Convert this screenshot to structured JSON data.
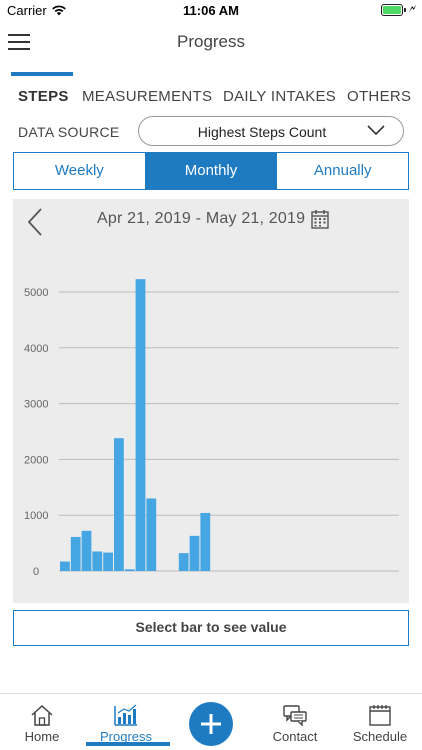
{
  "status": {
    "carrier": "Carrier",
    "time": "11:06 AM"
  },
  "header": {
    "title": "Progress"
  },
  "tabs": [
    {
      "label": "STEPS",
      "active": true
    },
    {
      "label": "MEASUREMENTS",
      "active": false
    },
    {
      "label": "DAILY INTAKES",
      "active": false
    },
    {
      "label": "OTHERS",
      "active": false
    }
  ],
  "data_source": {
    "label": "DATA SOURCE",
    "value": "Highest Steps Count"
  },
  "periods": [
    {
      "label": "Weekly",
      "active": false
    },
    {
      "label": "Monthly",
      "active": true
    },
    {
      "label": "Annually",
      "active": false
    }
  ],
  "chart": {
    "date_range": "Apr 21, 2019 - May 21, 2019"
  },
  "chart_data": {
    "type": "bar",
    "ylim": [
      0,
      5000
    ],
    "yticks": [
      0,
      1000,
      2000,
      3000,
      4000,
      5000
    ],
    "bar_color": "#45a6e3",
    "grid": true,
    "values": [
      170,
      610,
      720,
      350,
      330,
      2380,
      30,
      5230,
      1300,
      0,
      0,
      320,
      630,
      1040,
      0,
      0,
      0,
      0,
      0,
      0,
      0,
      0,
      0,
      0,
      0,
      0,
      0,
      0,
      0,
      0,
      0
    ]
  },
  "select_hint": "Select bar to see value",
  "nav": {
    "items": [
      {
        "label": "Home",
        "icon": "home-icon",
        "active": false
      },
      {
        "label": "Progress",
        "icon": "progress-chart-icon",
        "active": true
      },
      {
        "label": "Contact",
        "icon": "chat-icon",
        "active": false
      },
      {
        "label": "Schedule",
        "icon": "calendar-icon",
        "active": false
      }
    ],
    "add_icon": "plus-icon"
  },
  "colors": {
    "accent": "#1f7bc1",
    "bar": "#45a6e3",
    "panel": "#ececec"
  }
}
